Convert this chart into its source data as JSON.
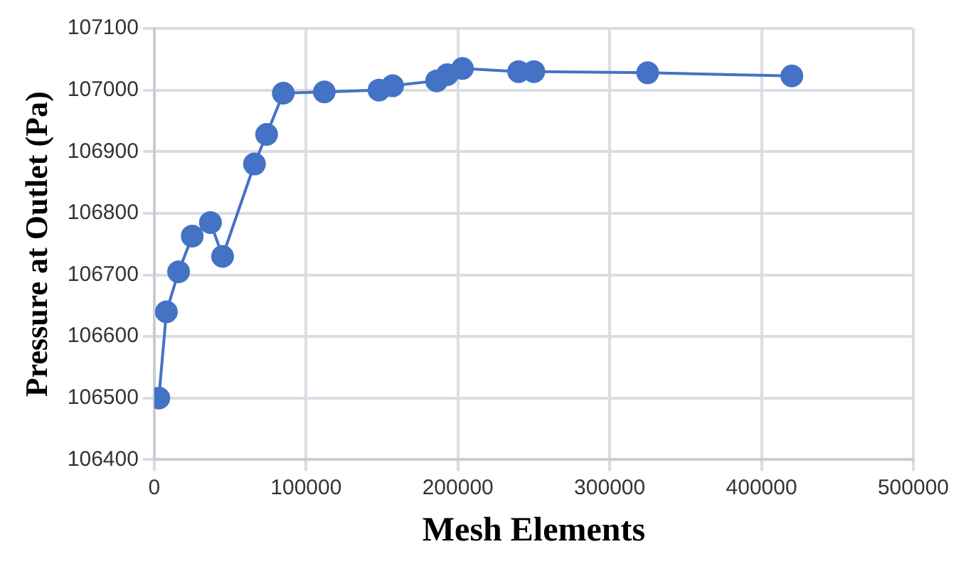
{
  "chart_data": {
    "type": "line",
    "xlabel": "Mesh Elements",
    "ylabel": "Pressure at Outlet (Pa)",
    "x": [
      3000,
      8000,
      16000,
      25000,
      37000,
      45000,
      66000,
      74000,
      85000,
      112000,
      148000,
      157000,
      186000,
      193000,
      203000,
      240000,
      250000,
      325000,
      420000
    ],
    "series": [
      {
        "color": "#4472c4",
        "values": [
          106500,
          106640,
          106705,
          106763,
          106785,
          106730,
          106880,
          106928,
          106995,
          106997,
          107000,
          107007,
          107015,
          107025,
          107035,
          107030,
          107030,
          107028,
          107023
        ]
      }
    ],
    "xlim": [
      0,
      500000
    ],
    "xticks": [
      0,
      100000,
      200000,
      300000,
      400000,
      500000
    ],
    "ylim": [
      106400,
      107100
    ],
    "yticks": [
      106400,
      106500,
      106600,
      106700,
      106800,
      106900,
      107000,
      107100
    ],
    "grid": true,
    "legend": false,
    "marker": "circle",
    "line_style": "solid"
  }
}
